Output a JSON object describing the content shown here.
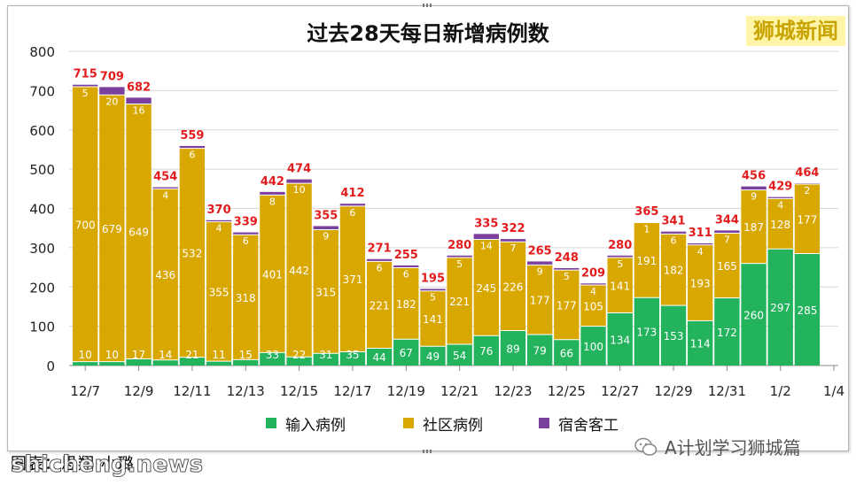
{
  "chart_data": {
    "type": "bar",
    "stacked": true,
    "title": "过去28天每日新增病例数",
    "categories": [
      "12/7",
      "12/8",
      "12/9",
      "12/10",
      "12/11",
      "12/12",
      "12/13",
      "12/14",
      "12/15",
      "12/16",
      "12/17",
      "12/18",
      "12/19",
      "12/20",
      "12/21",
      "12/22",
      "12/23",
      "12/24",
      "12/25",
      "12/26",
      "12/27",
      "12/28",
      "12/29",
      "12/30",
      "12/31",
      "1/1",
      "1/2",
      "1/3"
    ],
    "x_tick_labels": [
      "12/7",
      "12/9",
      "12/11",
      "12/13",
      "12/15",
      "12/17",
      "12/19",
      "12/21",
      "12/23",
      "12/25",
      "12/27",
      "12/29",
      "12/31",
      "1/2",
      "1/4"
    ],
    "series": [
      {
        "name": "输入病例",
        "color": "#22b35c",
        "values": [
          10,
          10,
          17,
          14,
          21,
          11,
          15,
          33,
          22,
          31,
          35,
          44,
          67,
          49,
          54,
          76,
          89,
          79,
          66,
          100,
          134,
          173,
          153,
          114,
          172,
          260,
          297,
          285
        ]
      },
      {
        "name": "社区病例",
        "color": "#d9a800",
        "values": [
          700,
          679,
          649,
          436,
          532,
          355,
          318,
          401,
          442,
          315,
          371,
          221,
          182,
          141,
          221,
          245,
          226,
          177,
          177,
          105,
          141,
          191,
          182,
          193,
          165,
          187,
          128,
          177
        ]
      },
      {
        "name": "宿舍客工",
        "color": "#7b3f9e",
        "values": [
          5,
          20,
          16,
          4,
          6,
          4,
          6,
          8,
          10,
          9,
          6,
          6,
          6,
          5,
          5,
          14,
          7,
          9,
          5,
          4,
          5,
          1,
          6,
          4,
          7,
          9,
          4,
          2
        ]
      }
    ],
    "totals": [
      715,
      709,
      682,
      454,
      559,
      370,
      339,
      442,
      474,
      355,
      412,
      271,
      255,
      195,
      280,
      335,
      322,
      265,
      248,
      209,
      280,
      365,
      341,
      311,
      344,
      456,
      429,
      464
    ],
    "ylim": [
      0,
      800
    ],
    "yticks": [
      0,
      100,
      200,
      300,
      400,
      500,
      600,
      700,
      800
    ],
    "grid": true,
    "legend": "bottom"
  },
  "brand": "狮城新闻",
  "caption": "图表：思翔·小璐",
  "watermark_wechat": "A计划学习狮城篇",
  "watermark_site": "shicheng.news",
  "colors": {
    "total_label": "#e21c1c",
    "grid": "#d8d8d8",
    "axis": "#888888"
  }
}
